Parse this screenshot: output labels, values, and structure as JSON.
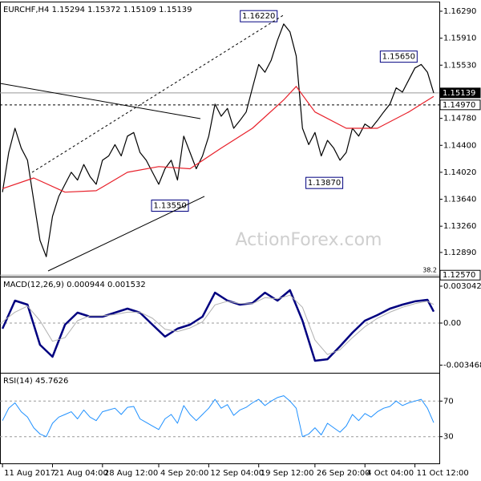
{
  "chart_data": [
    {
      "type": "line",
      "title": "EURCHF,H4 1.15294 1.15372 1.15109 1.15139",
      "watermark": "ActionForex.com",
      "xlim": [
        -0.4,
        69.9
      ],
      "ylim": [
        1.1255,
        1.16403
      ],
      "yticks": [
        {
          "value": 1.1629,
          "label": "1.16290"
        },
        {
          "value": 1.1591,
          "label": "1.15910"
        },
        {
          "value": 1.1553,
          "label": "1.15530"
        },
        {
          "value": 1.1515,
          "label": "1.15150"
        },
        {
          "value": 1.1478,
          "label": "1.14780"
        },
        {
          "value": 1.144,
          "label": "1.14400"
        },
        {
          "value": 1.1402,
          "label": "1.14020"
        },
        {
          "value": 1.1364,
          "label": "1.13640"
        },
        {
          "value": 1.1326,
          "label": "1.13260"
        },
        {
          "value": 1.1289,
          "label": "1.12890"
        }
      ],
      "series": [
        {
          "color": "#000000",
          "x": [
            0,
            1,
            2,
            3,
            4,
            5,
            6,
            7,
            8,
            9,
            10,
            11,
            12,
            13,
            14,
            15,
            16,
            17,
            18,
            19,
            20,
            21,
            22,
            23,
            24,
            25,
            26,
            27,
            28,
            29,
            30,
            31,
            32,
            33,
            34,
            35,
            36,
            37,
            38,
            39,
            40,
            41,
            42,
            43,
            44,
            45,
            46,
            47,
            48,
            49,
            50,
            51,
            52,
            53,
            54,
            55,
            56,
            57,
            58,
            59,
            60,
            61,
            62,
            63,
            64,
            65,
            66,
            67,
            68,
            69
          ],
          "values": [
            1.1374,
            1.143,
            1.1464,
            1.1436,
            1.1419,
            1.1362,
            1.1306,
            1.1283,
            1.134,
            1.1368,
            1.1385,
            1.1402,
            1.1391,
            1.1413,
            1.1396,
            1.1385,
            1.1419,
            1.1425,
            1.1441,
            1.1425,
            1.1453,
            1.1458,
            1.143,
            1.1419,
            1.1402,
            1.1385,
            1.1407,
            1.1419,
            1.1391,
            1.1453,
            1.143,
            1.1407,
            1.1425,
            1.1453,
            1.1498,
            1.1481,
            1.1492,
            1.1464,
            1.1475,
            1.1487,
            1.1521,
            1.1554,
            1.1543,
            1.156,
            1.1588,
            1.1611,
            1.16,
            1.1566,
            1.1464,
            1.1441,
            1.1458,
            1.1425,
            1.1447,
            1.1436,
            1.1419,
            1.143,
            1.1464,
            1.1453,
            1.147,
            1.1464,
            1.1475,
            1.1487,
            1.1498,
            1.1521,
            1.1515,
            1.1532,
            1.1549,
            1.1554,
            1.1543,
            1.15139
          ]
        },
        {
          "color": "#e8202a",
          "x": [
            0,
            5,
            10,
            15,
            20,
            25,
            30,
            35,
            40,
            45,
            47,
            50,
            55,
            60,
            65,
            69
          ],
          "values": [
            1.1379,
            1.1394,
            1.1374,
            1.1376,
            1.1402,
            1.141,
            1.1407,
            1.1436,
            1.1464,
            1.1504,
            1.1523,
            1.1487,
            1.1464,
            1.1464,
            1.1487,
            1.1509
          ]
        }
      ],
      "levels": [
        {
          "value": 1.15139,
          "label": "1.15139",
          "line_style": "solid"
        },
        {
          "value": 1.1497,
          "label": "1.14970",
          "line_style": "dashed"
        },
        {
          "value": 1.1257,
          "label": "1.12570",
          "line_style": "solid",
          "fib_label": "38.2"
        }
      ],
      "annotations": [
        {
          "x": 41,
          "value": 1.1622,
          "label": "1.16220"
        },
        {
          "x": 63.4,
          "value": 1.1565,
          "label": "1.15650"
        },
        {
          "x": 51.5,
          "value": 1.1387,
          "label": "1.13870"
        },
        {
          "x": 26.8,
          "value": 1.1355,
          "label": "1.13550"
        }
      ]
    },
    {
      "type": "line",
      "title": "MACD(12,26,9) 0.000944 0.001532",
      "xlim": [
        -0.4,
        69.9
      ],
      "ylim": [
        -0.0041,
        0.003704
      ],
      "yticks": [
        0.003042,
        {
          "value": 0,
          "label": "0.00",
          "grid": true
        },
        -0.003468
      ],
      "series": [
        {
          "color": "#000080",
          "width": 2.5,
          "x": [
            0,
            2,
            4,
            6,
            8,
            10,
            12,
            14,
            16,
            18,
            20,
            22,
            24,
            26,
            28,
            30,
            32,
            34,
            36,
            38,
            40,
            42,
            44,
            46,
            48,
            50,
            52,
            54,
            56,
            58,
            60,
            62,
            64,
            66,
            68,
            69
          ],
          "values": [
            -0.00046,
            0.00185,
            0.00152,
            -0.00179,
            -0.00278,
            -0.00013,
            0.00086,
            0.00053,
            0.00053,
            0.00086,
            0.00119,
            0.00086,
            -0.00013,
            -0.00112,
            -0.00046,
            -0.00013,
            0.00053,
            0.00251,
            0.00185,
            0.00152,
            0.00165,
            0.00251,
            0.00185,
            0.00271,
            0.0002,
            -0.00311,
            -0.00298,
            -0.00192,
            -0.00079,
            0.0002,
            0.00066,
            0.00119,
            0.00152,
            0.00179,
            0.00192,
            0.000944
          ]
        },
        {
          "color": "#b0b0b0",
          "width": 1,
          "x": [
            0,
            2,
            4,
            6,
            8,
            10,
            12,
            14,
            16,
            18,
            20,
            22,
            24,
            26,
            28,
            30,
            32,
            34,
            36,
            38,
            40,
            42,
            44,
            46,
            48,
            50,
            52,
            54,
            56,
            58,
            60,
            62,
            64,
            66,
            68,
            69
          ],
          "values": [
            0.0001,
            0.0009,
            0.0014,
            0.0002,
            -0.0015,
            -0.0012,
            0.0002,
            0.0006,
            0.0006,
            0.0007,
            0.0009,
            0.0009,
            0.0004,
            -0.0005,
            -0.0007,
            -0.0004,
            0.0001,
            0.0015,
            0.0018,
            0.0016,
            0.0016,
            0.0021,
            0.002,
            0.0023,
            0.0013,
            -0.0014,
            -0.0026,
            -0.0022,
            -0.0012,
            -0.0003,
            0.0004,
            0.0009,
            0.0013,
            0.0016,
            0.0018,
            0.001532
          ]
        }
      ]
    },
    {
      "type": "line",
      "title": "RSI(14) 45.7626",
      "xlim": [
        -0.4,
        69.9
      ],
      "ylim": [
        0,
        100
      ],
      "yticks": [
        70,
        30
      ],
      "grid": true,
      "xticks": [
        {
          "value": 0,
          "label": "11 Aug 2017"
        },
        {
          "value": 8,
          "label": "21 Aug 04:00"
        },
        {
          "value": 16,
          "label": "28 Aug 12:00"
        },
        {
          "value": 25,
          "label": "4 Sep 20:00"
        },
        {
          "value": 33,
          "label": "12 Sep 04:00"
        },
        {
          "value": 41,
          "label": "19 Sep 12:00"
        },
        {
          "value": 50,
          "label": "26 Sep 20:00"
        },
        {
          "value": 58,
          "label": "4 Oct 04:00"
        },
        {
          "value": 66,
          "label": "11 Oct 12:00"
        }
      ],
      "series": [
        {
          "color": "#1e90ff",
          "width": 1,
          "x": [
            0,
            1,
            2,
            3,
            4,
            5,
            6,
            7,
            8,
            9,
            10,
            11,
            12,
            13,
            14,
            15,
            16,
            17,
            18,
            19,
            20,
            21,
            22,
            23,
            24,
            25,
            26,
            27,
            28,
            29,
            30,
            31,
            32,
            33,
            34,
            35,
            36,
            37,
            38,
            39,
            40,
            41,
            42,
            43,
            44,
            45,
            46,
            47,
            48,
            49,
            50,
            51,
            52,
            53,
            54,
            55,
            56,
            57,
            58,
            59,
            60,
            61,
            62,
            63,
            64,
            65,
            66,
            67,
            68,
            69
          ],
          "values": [
            48,
            62,
            68,
            58,
            52,
            40,
            33,
            30,
            45,
            52,
            55,
            58,
            50,
            60,
            52,
            48,
            58,
            60,
            62,
            55,
            63,
            64,
            50,
            46,
            42,
            38,
            50,
            55,
            45,
            65,
            55,
            48,
            55,
            62,
            72,
            62,
            66,
            54,
            60,
            63,
            68,
            72,
            65,
            70,
            74,
            76,
            70,
            62,
            30,
            33,
            40,
            32,
            45,
            40,
            35,
            42,
            55,
            48,
            56,
            52,
            58,
            62,
            64,
            70,
            65,
            68,
            70,
            72,
            62,
            45.7626
          ]
        }
      ]
    }
  ]
}
